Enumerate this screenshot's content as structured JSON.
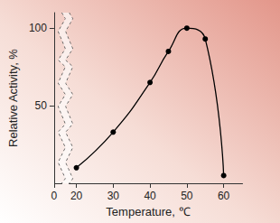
{
  "chart_data": {
    "type": "line",
    "x_label": "Temperature, ℃",
    "y_label": "Relative Activity, %",
    "x": [
      20,
      30,
      40,
      45,
      50,
      55,
      60
    ],
    "values": [
      10,
      33,
      65,
      85,
      100,
      93,
      5
    ],
    "color": "#000000",
    "marker": "circle",
    "line_style": "solid",
    "xlim": [
      0,
      65
    ],
    "xticks": [
      0,
      20,
      30,
      40,
      50,
      60
    ],
    "ylim": [
      0,
      110
    ],
    "yticks": [
      50,
      100
    ],
    "grid": false
  }
}
